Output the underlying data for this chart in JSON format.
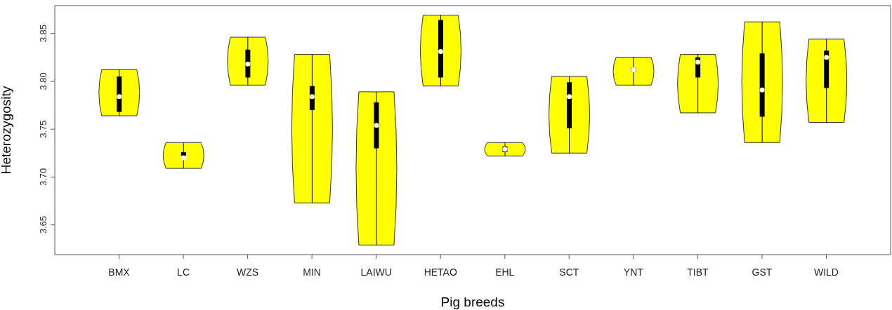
{
  "chart_data": {
    "type": "box",
    "xlabel": "Pig breeds",
    "ylabel": "Heterozygosity",
    "color": "#000000",
    "categories": [
      "BMX",
      "LC",
      "WZS",
      "MIN",
      "LAIWU",
      "HETAO",
      "EHL",
      "SCT",
      "YNT",
      "TIBT",
      "GST",
      "WILD"
    ],
    "boxes": [
      {
        "low": 3.764,
        "q1": 3.768,
        "median": 3.784,
        "q3": 3.805,
        "high": 3.812
      },
      {
        "low": 3.709,
        "q1": 3.722,
        "median": 3.72,
        "q3": 3.726,
        "high": 3.736
      },
      {
        "low": 3.796,
        "q1": 3.804,
        "median": 3.818,
        "q3": 3.833,
        "high": 3.846
      },
      {
        "low": 3.673,
        "q1": 3.77,
        "median": 3.784,
        "q3": 3.795,
        "high": 3.828
      },
      {
        "low": 3.629,
        "q1": 3.73,
        "median": 3.754,
        "q3": 3.778,
        "high": 3.789
      },
      {
        "low": 3.795,
        "q1": 3.804,
        "median": 3.831,
        "q3": 3.864,
        "high": 3.869
      },
      {
        "low": 3.722,
        "q1": 3.726,
        "median": 3.729,
        "q3": 3.732,
        "high": 3.736
      },
      {
        "low": 3.725,
        "q1": 3.751,
        "median": 3.784,
        "q3": 3.799,
        "high": 3.805
      },
      {
        "low": 3.796,
        "q1": 3.81,
        "median": 3.812,
        "q3": 3.814,
        "high": 3.825
      },
      {
        "low": 3.767,
        "q1": 3.804,
        "median": 3.82,
        "q3": 3.825,
        "high": 3.828
      },
      {
        "low": 3.736,
        "q1": 3.763,
        "median": 3.791,
        "q3": 3.829,
        "high": 3.862
      },
      {
        "low": 3.757,
        "q1": 3.793,
        "median": 3.825,
        "q3": 3.832,
        "high": 3.844
      }
    ],
    "ylim": [
      3.619,
      3.879
    ],
    "yticks": [
      3.65,
      {
        "value": 3.7,
        "label": "3.70"
      },
      3.75,
      {
        "value": 3.8,
        "label": "3.80"
      },
      3.85
    ],
    "grid": false,
    "legend": false
  }
}
